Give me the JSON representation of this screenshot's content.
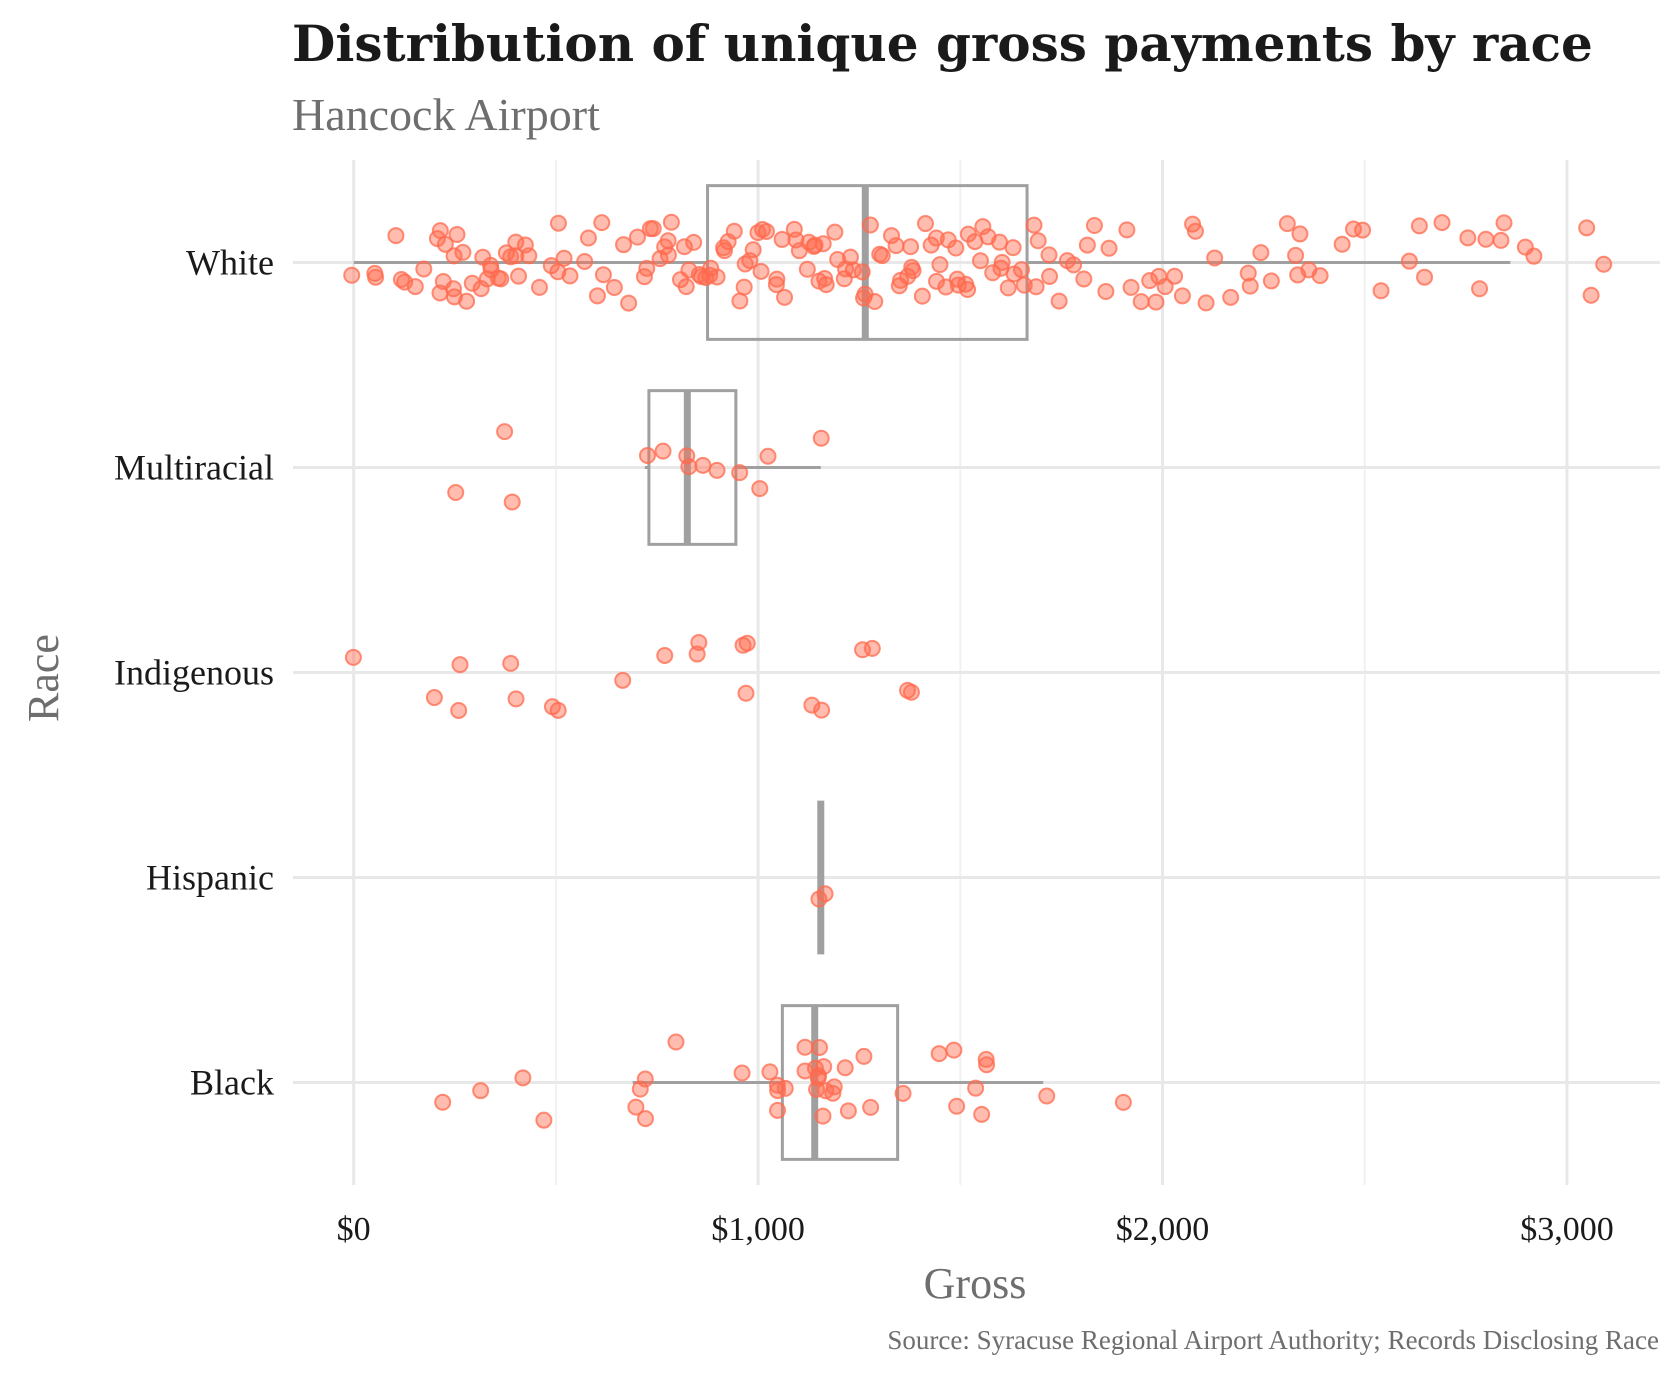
{
  "chart_data": {
    "type": "boxplot-jitter",
    "title": "Distribution of unique gross payments by race",
    "subtitle": "Hancock Airport",
    "caption": "Source: Syracuse Regional Airport Authority; Records Disclosing Race",
    "xlabel": "Gross",
    "ylabel": "Race",
    "xlim": [
      -150,
      3230
    ],
    "x_ticks": [
      0,
      1000,
      2000,
      3000
    ],
    "x_tick_labels": [
      "$0",
      "$1,000",
      "$2,000",
      "$3,000"
    ],
    "grid": true,
    "point_color": "#ff6a4d",
    "box_color": "#a0a0a0",
    "categories": [
      "White",
      "Multiracial",
      "Indigenous",
      "Hispanic",
      "Black"
    ],
    "boxes": [
      {
        "category": "White",
        "whisker_low": 0,
        "q1": 875,
        "median": 1265,
        "q3": 1665,
        "whisker_high": 2860
      },
      {
        "category": "Multiracial",
        "whisker_low": 720,
        "q1": 730,
        "median": 825,
        "q3": 945,
        "whisker_high": 1155
      },
      {
        "category": "Hispanic",
        "whisker_low": 1155,
        "q1": 1155,
        "median": 1155,
        "q3": 1155,
        "whisker_high": 1155
      },
      {
        "category": "Black",
        "whisker_low": 690,
        "q1": 1060,
        "median": 1140,
        "q3": 1345,
        "whisker_high": 1705
      }
    ],
    "points": {
      "White": [
        0,
        40,
        50,
        95,
        110,
        130,
        160,
        180,
        200,
        205,
        215,
        225,
        230,
        240,
        250,
        255,
        260,
        270,
        280,
        300,
        310,
        320,
        330,
        340,
        350,
        360,
        370,
        380,
        390,
        400,
        410,
        420,
        430,
        440,
        460,
        480,
        500,
        505,
        520,
        540,
        560,
        580,
        600,
        610,
        620,
        640,
        660,
        680,
        700,
        710,
        720,
        730,
        740,
        750,
        760,
        770,
        780,
        790,
        800,
        810,
        820,
        830,
        840,
        850,
        860,
        870,
        880,
        890,
        900,
        910,
        920,
        930,
        940,
        950,
        960,
        970,
        980,
        990,
        1000,
        1010,
        1020,
        1030,
        1040,
        1050,
        1060,
        1070,
        1080,
        1090,
        1100,
        1110,
        1120,
        1130,
        1140,
        1150,
        1160,
        1170,
        1180,
        1190,
        1200,
        1210,
        1220,
        1230,
        1240,
        1250,
        1260,
        1270,
        1280,
        1290,
        1300,
        1310,
        1320,
        1330,
        1340,
        1350,
        1360,
        1370,
        1380,
        1390,
        1400,
        1410,
        1420,
        1430,
        1440,
        1450,
        1460,
        1470,
        1480,
        1490,
        1500,
        1510,
        1520,
        1530,
        1540,
        1550,
        1560,
        1570,
        1580,
        1590,
        1600,
        1610,
        1620,
        1630,
        1640,
        1650,
        1660,
        1670,
        1680,
        1700,
        1710,
        1720,
        1740,
        1760,
        1780,
        1800,
        1820,
        1840,
        1860,
        1880,
        1900,
        1920,
        1940,
        1960,
        1980,
        2000,
        2010,
        2030,
        2050,
        2070,
        2090,
        2110,
        2140,
        2170,
        2200,
        2210,
        2250,
        2280,
        2300,
        2320,
        2340,
        2350,
        2360,
        2400,
        2450,
        2480,
        2500,
        2550,
        2600,
        2630,
        2650,
        2700,
        2750,
        2780,
        2800,
        2830,
        2850,
        2900,
        2920,
        3060,
        3070,
        3080
      ],
      "Multiracial": [
        260,
        380,
        385,
        715,
        775,
        820,
        830,
        860,
        910,
        945,
        995,
        1025,
        1155
      ],
      "Indigenous": [
        0,
        200,
        255,
        260,
        390,
        400,
        480,
        515,
        660,
        770,
        845,
        860,
        965,
        975,
        975,
        1140,
        1160,
        1260,
        1285,
        1370,
        1375
      ],
      "Hispanic": [
        1155,
        1155
      ],
      "Black": [
        230,
        320,
        430,
        470,
        690,
        715,
        720,
        730,
        800,
        970,
        1030,
        1060,
        1060,
        1060,
        1060,
        1120,
        1125,
        1130,
        1135,
        1140,
        1145,
        1150,
        1155,
        1165,
        1175,
        1185,
        1200,
        1220,
        1230,
        1260,
        1270,
        1350,
        1440,
        1480,
        1500,
        1540,
        1550,
        1555,
        1555,
        1705,
        1915
      ]
    }
  }
}
